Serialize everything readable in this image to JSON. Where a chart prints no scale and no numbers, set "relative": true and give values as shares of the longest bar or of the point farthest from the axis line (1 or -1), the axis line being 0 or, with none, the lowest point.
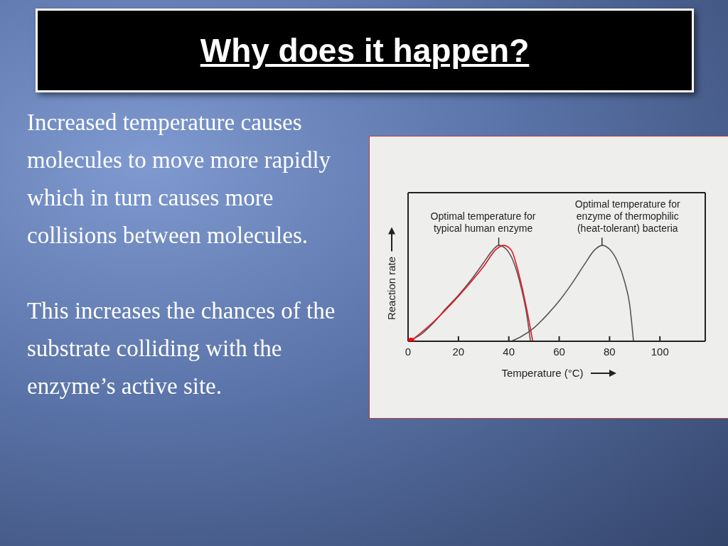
{
  "chart_data": {
    "type": "line",
    "title": "Why does it happen?",
    "xlabel": "Temperature (°C)",
    "ylabel": "Reaction rate",
    "relative": true,
    "xlim": [
      0,
      118
    ],
    "xticks": [
      0,
      20,
      40,
      60,
      80,
      100
    ],
    "marker": "none",
    "line_style": "solid",
    "series": [
      {
        "color": "#555555",
        "x": [
          0,
          5,
          10,
          15,
          20,
          25,
          30,
          33,
          36,
          39,
          42,
          45,
          47,
          48.6
        ],
        "values": [
          0,
          0.07,
          0.19,
          0.34,
          0.48,
          0.64,
          0.82,
          0.93,
          1,
          0.96,
          0.82,
          0.55,
          0.3,
          0
        ]
      },
      {
        "color": "#555555",
        "x": [
          41,
          45,
          50,
          55,
          60,
          65,
          70,
          74,
          77,
          80,
          83,
          86,
          88,
          89.5
        ],
        "values": [
          0,
          0.05,
          0.14,
          0.27,
          0.42,
          0.6,
          0.8,
          0.95,
          1,
          0.96,
          0.84,
          0.62,
          0.38,
          0
        ]
      },
      {
        "color": "#e8141e",
        "x": [
          1,
          10,
          20,
          30,
          35,
          38,
          41,
          44,
          47,
          49.5
        ],
        "values": [
          0,
          0.2,
          0.47,
          0.78,
          0.96,
          1,
          0.95,
          0.7,
          0.35,
          0
        ]
      },
      {
        "type": "scatter",
        "marker": "circle",
        "color": "#ff0000",
        "x": [
          1.2
        ],
        "values": [
          0
        ]
      }
    ],
    "annotations": [
      {
        "text": "Optimal temperature for\ntypical human enzyme",
        "x": 36,
        "y": 1
      },
      {
        "text": "Optimal temperature for\nenzyme of thermophilic\n(heat-tolerant) bacteria",
        "x": 77,
        "y": 1
      },
      "Increased temperature causes molecules to move more rapidly which in turn causes more collisions between molecules.",
      "This increases the chances of the substrate colliding with the enzyme’s active site."
    ]
  }
}
